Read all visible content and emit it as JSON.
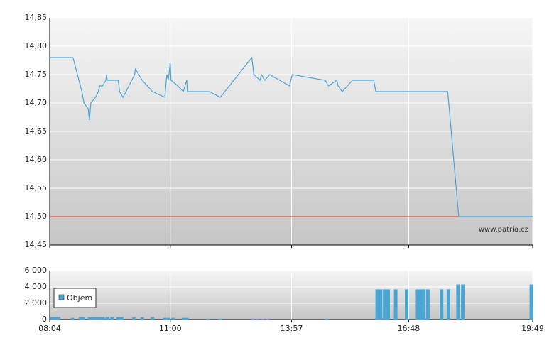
{
  "chart_data": [
    {
      "type": "line",
      "color": "#4aa6d6",
      "x": [
        484,
        518,
        531,
        534,
        540,
        542,
        544,
        551,
        555,
        557,
        561,
        566,
        567,
        568,
        584,
        586,
        591,
        608,
        609,
        619,
        634,
        652,
        655,
        657,
        660,
        661,
        671,
        679,
        684,
        685,
        717,
        733,
        779,
        782,
        791,
        793,
        798,
        805,
        834,
        838,
        886,
        891,
        903,
        905,
        911,
        926,
        957,
        960,
        1065,
        1081,
        1189
      ],
      "values": [
        14.78,
        14.78,
        14.72,
        14.7,
        14.69,
        14.67,
        14.7,
        14.71,
        14.72,
        14.73,
        14.73,
        14.74,
        14.75,
        14.74,
        14.74,
        14.72,
        14.71,
        14.75,
        14.76,
        14.74,
        14.72,
        14.71,
        14.75,
        14.74,
        14.77,
        14.74,
        14.73,
        14.72,
        14.74,
        14.72,
        14.72,
        14.71,
        14.78,
        14.75,
        14.74,
        14.75,
        14.74,
        14.75,
        14.73,
        14.75,
        14.74,
        14.73,
        14.74,
        14.73,
        14.72,
        14.74,
        14.74,
        14.72,
        14.72,
        14.5,
        14.5
      ],
      "ylim": [
        14.45,
        14.85
      ],
      "yticks": [
        {
          "value": 14.45,
          "label": "14,45"
        },
        {
          "value": 14.5,
          "label": "14,50"
        },
        {
          "value": 14.55,
          "label": "14,55"
        },
        {
          "value": 14.6,
          "label": "14,60"
        },
        {
          "value": 14.65,
          "label": "14,65"
        },
        {
          "value": 14.7,
          "label": "14,70"
        },
        {
          "value": 14.75,
          "label": "14,75"
        },
        {
          "value": 14.8,
          "label": "14,80"
        },
        {
          "value": 14.85,
          "label": "14,85"
        }
      ],
      "reference_line": {
        "value": 14.5,
        "color": "#e03020"
      },
      "watermark": "www.patria.cz",
      "grid": true
    },
    {
      "type": "bar",
      "x": [
        487,
        492,
        497,
        517,
        529,
        533,
        542,
        547,
        552,
        557,
        562,
        568,
        575,
        584,
        589,
        607,
        619,
        634,
        652,
        657,
        664,
        679,
        684,
        715,
        732,
        781,
        787,
        795,
        802,
        888,
        962,
        967,
        973,
        978,
        989,
        1005,
        1021,
        1026,
        1030,
        1036,
        1056,
        1066,
        1080,
        1087,
        1187
      ],
      "series": [
        {
          "name": "Objem",
          "color": "#4aa6d0",
          "values": [
            300,
            300,
            300,
            200,
            300,
            300,
            300,
            300,
            300,
            300,
            300,
            300,
            300,
            300,
            300,
            300,
            300,
            300,
            200,
            200,
            200,
            200,
            200,
            100,
            100,
            100,
            100,
            100,
            100,
            100,
            3700,
            3700,
            3700,
            3700,
            3700,
            3700,
            3700,
            3700,
            3700,
            3700,
            3700,
            3700,
            4300,
            4300,
            4300
          ]
        }
      ],
      "xlim": [
        484,
        1189
      ],
      "xticks": [
        {
          "value": 484,
          "label": "08:04"
        },
        {
          "value": 660,
          "label": "11:00"
        },
        {
          "value": 837,
          "label": "13:57"
        },
        {
          "value": 1008,
          "label": "16:48"
        },
        {
          "value": 1189,
          "label": "19:49"
        }
      ],
      "ylim": [
        0,
        6000
      ],
      "yticks": [
        {
          "value": 0,
          "label": "0"
        },
        {
          "value": 2000,
          "label": "2 000"
        },
        {
          "value": 4000,
          "label": "4 000"
        },
        {
          "value": 6000,
          "label": "6 000"
        }
      ],
      "grid": true
    }
  ]
}
